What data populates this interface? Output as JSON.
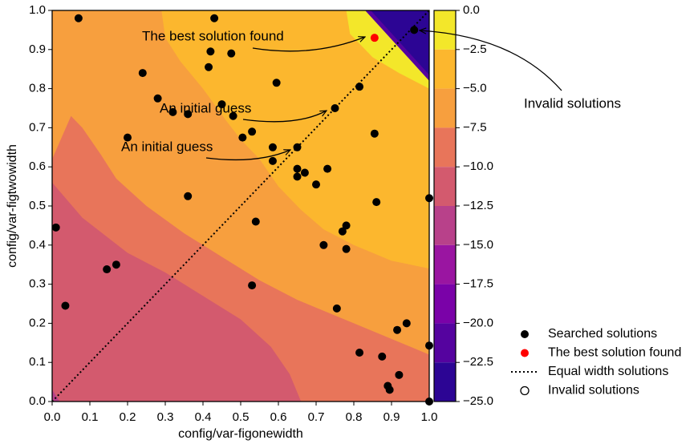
{
  "chart_data": {
    "type": "contour_scatter",
    "xlabel": "config/var-figonewidth",
    "ylabel": "config/var-figtwowidth",
    "xlim": [
      0,
      1
    ],
    "ylim": [
      0,
      1
    ],
    "xticks": [
      {
        "value": 0,
        "label": "0.0"
      },
      {
        "value": 0.1,
        "label": "0.1"
      },
      {
        "value": 0.2,
        "label": "0.2"
      },
      {
        "value": 0.3,
        "label": "0.3"
      },
      {
        "value": 0.4,
        "label": "0.4"
      },
      {
        "value": 0.5,
        "label": "0.5"
      },
      {
        "value": 0.6,
        "label": "0.6"
      },
      {
        "value": 0.7,
        "label": "0.7"
      },
      {
        "value": 0.8,
        "label": "0.8"
      },
      {
        "value": 0.9,
        "label": "0.9"
      },
      {
        "value": 1,
        "label": "1.0"
      }
    ],
    "yticks": [
      {
        "value": 0,
        "label": "0.0"
      },
      {
        "value": 0.1,
        "label": "0.1"
      },
      {
        "value": 0.2,
        "label": "0.2"
      },
      {
        "value": 0.3,
        "label": "0.3"
      },
      {
        "value": 0.4,
        "label": "0.4"
      },
      {
        "value": 0.5,
        "label": "0.5"
      },
      {
        "value": 0.6,
        "label": "0.6"
      },
      {
        "value": 0.7,
        "label": "0.7"
      },
      {
        "value": 0.8,
        "label": "0.8"
      },
      {
        "value": 0.9,
        "label": "0.9"
      },
      {
        "value": 1,
        "label": "1.0"
      }
    ],
    "colorbar": {
      "lim": [
        -25,
        0
      ],
      "ticks": [
        {
          "value": 0,
          "label": "0.0"
        },
        {
          "value": -2.5,
          "label": "−2.5"
        },
        {
          "value": -5,
          "label": "−5.0"
        },
        {
          "value": -7.5,
          "label": "−7.5"
        },
        {
          "value": -10,
          "label": "−10.0"
        },
        {
          "value": -12.5,
          "label": "−12.5"
        },
        {
          "value": -15,
          "label": "−15.0"
        },
        {
          "value": -17.5,
          "label": "−17.5"
        },
        {
          "value": -20,
          "label": "−20.0"
        },
        {
          "value": -22.5,
          "label": "−22.5"
        },
        {
          "value": -25,
          "label": "−25.0"
        }
      ],
      "colors": [
        "#f3e72a",
        "#fcb72e",
        "#f79f3e",
        "#e8755a",
        "#d35a6e",
        "#b8418a",
        "#9a15a1",
        "#7a02a8",
        "#55039f",
        "#2c0594"
      ]
    },
    "series": [
      {
        "name": "Searched solutions",
        "color": "#000000",
        "x": [
          0.07,
          0.43,
          0.96,
          0.42,
          0.475,
          0.24,
          0.415,
          0.595,
          0.815,
          0.28,
          0.32,
          0.36,
          0.45,
          0.48,
          0.75,
          0.2,
          0.53,
          0.505,
          0.855,
          0.585,
          0.65,
          0.585,
          0.73,
          0.65,
          0.67,
          0.65,
          0.7,
          0.36,
          0.86,
          1.0,
          0.54,
          0.78,
          0.77,
          0.72,
          0.78,
          0.01,
          0.17,
          0.145,
          0.53,
          0.035,
          0.755,
          0.94,
          0.915,
          0.815,
          0.875,
          1.0,
          0.92,
          0.89,
          0.895,
          1.0
        ],
        "y": [
          0.98,
          0.98,
          0.95,
          0.895,
          0.89,
          0.84,
          0.855,
          0.815,
          0.805,
          0.775,
          0.74,
          0.735,
          0.76,
          0.73,
          0.75,
          0.675,
          0.69,
          0.675,
          0.685,
          0.65,
          0.65,
          0.615,
          0.595,
          0.595,
          0.585,
          0.575,
          0.555,
          0.525,
          0.51,
          0.52,
          0.46,
          0.45,
          0.435,
          0.4,
          0.39,
          0.445,
          0.35,
          0.338,
          0.297,
          0.245,
          0.238,
          0.2,
          0.183,
          0.125,
          0.115,
          0.143,
          0.068,
          0.04,
          0.03,
          0.0
        ]
      },
      {
        "name": "The best solution found",
        "color": "#ff0000",
        "x": [
          0.855
        ],
        "y": [
          0.93
        ]
      },
      {
        "name": "Equal width solutions",
        "color": "#000000",
        "style": "dotted",
        "x": [
          0,
          1
        ],
        "y": [
          0,
          1
        ]
      },
      {
        "name": "Invalid solutions",
        "color": "#000000",
        "style": "hollow",
        "x": [],
        "y": []
      }
    ],
    "annotations": [
      {
        "text": "The best solution found"
      },
      {
        "text": "An initial guess"
      },
      {
        "text": "An initial guess"
      },
      {
        "text": "Invalid solutions"
      }
    ]
  }
}
